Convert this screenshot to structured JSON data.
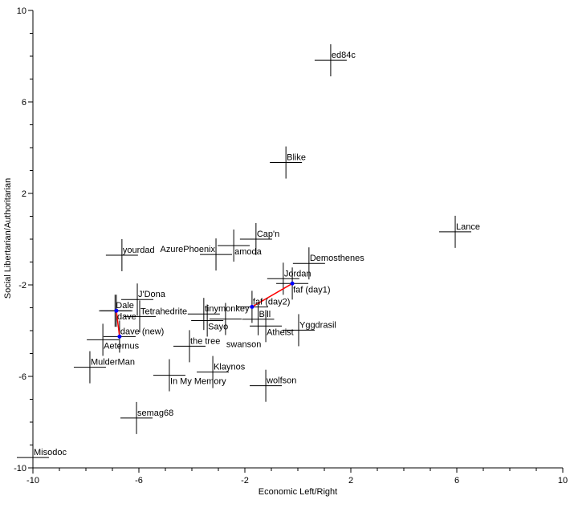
{
  "chart_data": {
    "type": "scatter",
    "title": "",
    "xlabel": "Economic Left/Right",
    "ylabel": "Social Libertarian/Authoritarian",
    "xlim": [
      -10,
      10
    ],
    "ylim": [
      -10,
      10
    ],
    "xticks": [
      -10,
      -6,
      -2,
      2,
      6,
      10
    ],
    "yticks": [
      10,
      6,
      2,
      -2,
      -6,
      -10
    ],
    "xtick_labels": [
      "-10",
      "-6",
      "-2",
      "2",
      "6",
      "10"
    ],
    "ytick_labels": [
      "10",
      "6",
      "2",
      "-2",
      "-6",
      "-10"
    ],
    "grid": false,
    "colors": {
      "marker": "#000000",
      "line": "#ff0000",
      "dot": "#0000ff"
    },
    "points": [
      {
        "label": "ed84c",
        "x": 1.24,
        "y": 7.82
      },
      {
        "label": "Blike",
        "x": -0.45,
        "y": 3.35
      },
      {
        "label": "Lance",
        "x": 5.94,
        "y": 0.32
      },
      {
        "label": "Cap'n",
        "x": -1.58,
        "y": 0.0
      },
      {
        "label": "amoda",
        "x": -2.42,
        "y": -0.28
      },
      {
        "label": "AzurePhoenix",
        "x": -3.09,
        "y": -0.67
      },
      {
        "label": "yourdad",
        "x": -6.64,
        "y": -0.7
      },
      {
        "label": "Demosthenes",
        "x": 0.42,
        "y": -1.06
      },
      {
        "label": "Jordan",
        "x": -0.55,
        "y": -1.73
      },
      {
        "label": "faf (day1)",
        "x": -0.21,
        "y": -1.94
      },
      {
        "label": "faf (day2)",
        "x": -1.73,
        "y": -2.96
      },
      {
        "label": "J'Dona",
        "x": -6.06,
        "y": -2.64
      },
      {
        "label": "Dale",
        "x": -6.9,
        "y": -3.13
      },
      {
        "label": "dave",
        "x": -6.85,
        "y": -3.13
      },
      {
        "label": "Tetrahedrite",
        "x": -5.97,
        "y": -3.38
      },
      {
        "label": "tinymonkey",
        "x": -3.55,
        "y": -3.27
      },
      {
        "label": "Sayo",
        "x": -3.42,
        "y": -3.56
      },
      {
        "label": "swanson",
        "x": -2.73,
        "y": -3.49
      },
      {
        "label": "Bill",
        "x": -1.5,
        "y": -3.5
      },
      {
        "label": "Atheist",
        "x": -1.21,
        "y": -3.8
      },
      {
        "label": "Yggdrasil",
        "x": 0.03,
        "y": -3.98
      },
      {
        "label": "dave (new)",
        "x": -6.73,
        "y": -4.26
      },
      {
        "label": "Aeternus",
        "x": -7.36,
        "y": -4.4
      },
      {
        "label": "the tree",
        "x": -4.09,
        "y": -4.68
      },
      {
        "label": "MulderMan",
        "x": -7.85,
        "y": -5.6
      },
      {
        "label": "Klaynos",
        "x": -3.21,
        "y": -5.81
      },
      {
        "label": "In My Memory",
        "x": -4.85,
        "y": -5.95
      },
      {
        "label": "wolfson",
        "x": -1.21,
        "y": -6.41
      },
      {
        "label": "semag68",
        "x": -6.09,
        "y": -7.82
      },
      {
        "label": "Misodoc",
        "x": -10.0,
        "y": -9.55
      }
    ],
    "connections": [
      {
        "from": "faf (day1)",
        "to": "faf (day2)"
      },
      {
        "from": "dave",
        "to": "dave (new)"
      }
    ]
  }
}
